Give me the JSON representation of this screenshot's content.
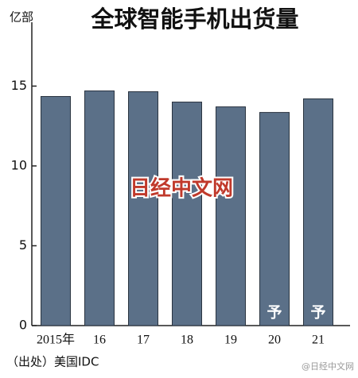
{
  "chart_data": {
    "type": "bar",
    "title": "全球智能手机出货量",
    "unit_label": "亿部",
    "categories": [
      "2015年",
      "16",
      "17",
      "18",
      "19",
      "20",
      "21"
    ],
    "values": [
      14.35,
      14.7,
      14.65,
      14.0,
      13.7,
      13.35,
      14.2
    ],
    "color": "#5b7088",
    "ylim": [
      0,
      19
    ],
    "yticks": [
      0,
      5,
      10,
      15
    ],
    "annotations": [
      {
        "category": "20",
        "text": "予"
      },
      {
        "category": "21",
        "text": "予"
      }
    ],
    "source": "（出处）美国IDC",
    "watermark": "日经中文网",
    "corner_watermark": "@日经中文网"
  }
}
